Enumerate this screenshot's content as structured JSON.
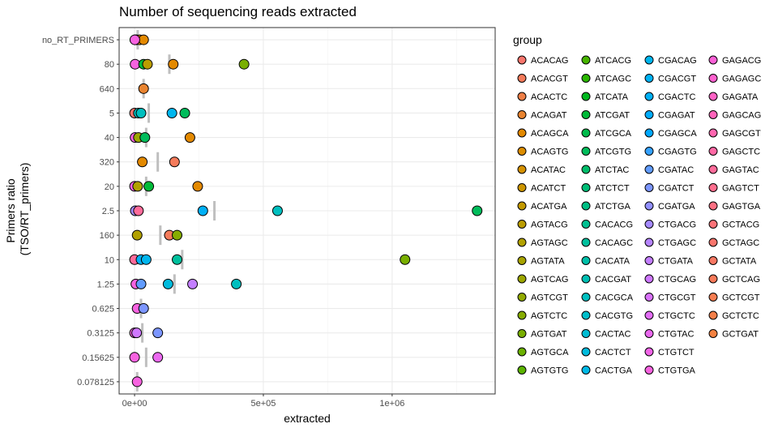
{
  "chart_data": {
    "type": "scatter",
    "title": "Number of sequencing reads extracted",
    "xlabel": "extracted",
    "ylabel_lines": [
      "Primers ratio",
      "(TSO/RT_primers)"
    ],
    "xlim": [
      -60000,
      1400000
    ],
    "x_ticks": [
      0,
      500000,
      1000000
    ],
    "x_tick_labels": [
      "0e+00",
      "5e+05",
      "1e+06"
    ],
    "categories": [
      "no_RT_PRIMERS",
      "80",
      "640",
      "5",
      "40",
      "320",
      "20",
      "2.5",
      "160",
      "10",
      "1.25",
      "0.625",
      "0.3125",
      "0.15625",
      "0.078125"
    ],
    "grid": true,
    "legend_position": "right",
    "legend_title": "group",
    "groups": [
      {
        "name": "ACACAG",
        "color": "#F8766D"
      },
      {
        "name": "ACACGT",
        "color": "#F47B5B"
      },
      {
        "name": "ACACTC",
        "color": "#EF7F47"
      },
      {
        "name": "ACAGAT",
        "color": "#E98430"
      },
      {
        "name": "ACAGCA",
        "color": "#E38900"
      },
      {
        "name": "ACAGTG",
        "color": "#DC8D00"
      },
      {
        "name": "ACATAC",
        "color": "#D59100"
      },
      {
        "name": "ACATCT",
        "color": "#CD9600"
      },
      {
        "name": "ACATGA",
        "color": "#C49A00"
      },
      {
        "name": "AGTACG",
        "color": "#BB9D00"
      },
      {
        "name": "AGTAGC",
        "color": "#B2A100"
      },
      {
        "name": "AGTATA",
        "color": "#A8A400"
      },
      {
        "name": "AGTCAG",
        "color": "#9DA700"
      },
      {
        "name": "AGTCGT",
        "color": "#92AA00"
      },
      {
        "name": "AGTCTC",
        "color": "#86AC00"
      },
      {
        "name": "AGTGAT",
        "color": "#79AF00"
      },
      {
        "name": "AGTGCA",
        "color": "#6BB100"
      },
      {
        "name": "AGTGTG",
        "color": "#5BB300"
      },
      {
        "name": "ATCACG",
        "color": "#47B500"
      },
      {
        "name": "ATCAGC",
        "color": "#2AB700"
      },
      {
        "name": "ATCATA",
        "color": "#00B81F"
      },
      {
        "name": "ATCGAT",
        "color": "#00BA38"
      },
      {
        "name": "ATCGCA",
        "color": "#00BB4B"
      },
      {
        "name": "ATCGTG",
        "color": "#00BC5B"
      },
      {
        "name": "ATCTAC",
        "color": "#00BD6A"
      },
      {
        "name": "ATCTCT",
        "color": "#00BE77"
      },
      {
        "name": "ATCTGA",
        "color": "#00BF84"
      },
      {
        "name": "CACACG",
        "color": "#00C091"
      },
      {
        "name": "CACAGC",
        "color": "#00C09D"
      },
      {
        "name": "CACATA",
        "color": "#00C0A9"
      },
      {
        "name": "CACGAT",
        "color": "#00C0B4"
      },
      {
        "name": "CACGCA",
        "color": "#00BFBF"
      },
      {
        "name": "CACGTG",
        "color": "#00BECA"
      },
      {
        "name": "CACTAC",
        "color": "#00BDD4"
      },
      {
        "name": "CACTCT",
        "color": "#00BBDD"
      },
      {
        "name": "CACTGA",
        "color": "#00B9E6"
      },
      {
        "name": "CGACAG",
        "color": "#00B6EE"
      },
      {
        "name": "CGACGT",
        "color": "#00B3F5"
      },
      {
        "name": "CGACTC",
        "color": "#00B0F6"
      },
      {
        "name": "CGAGAT",
        "color": "#00ACFC"
      },
      {
        "name": "CGAGCA",
        "color": "#00A8FF"
      },
      {
        "name": "CGAGTG",
        "color": "#35A2FF"
      },
      {
        "name": "CGATAC",
        "color": "#619CFF"
      },
      {
        "name": "CGATCT",
        "color": "#7C96FF"
      },
      {
        "name": "CGATGA",
        "color": "#9290FF"
      },
      {
        "name": "CTGACG",
        "color": "#A58AFF"
      },
      {
        "name": "CTGAGC",
        "color": "#B584FF"
      },
      {
        "name": "CTGATA",
        "color": "#C37EFF"
      },
      {
        "name": "CTGCAG",
        "color": "#CF78FF"
      },
      {
        "name": "CTGCGT",
        "color": "#DA72FB"
      },
      {
        "name": "CTGCTC",
        "color": "#E36EF6"
      },
      {
        "name": "CTGTAC",
        "color": "#EB69F0"
      },
      {
        "name": "CTGTCT",
        "color": "#F265E8"
      },
      {
        "name": "CTGTGA",
        "color": "#F763E0"
      },
      {
        "name": "GAGACG",
        "color": "#FB61D7"
      },
      {
        "name": "GAGAGC",
        "color": "#FE61CF"
      },
      {
        "name": "GAGATA",
        "color": "#FF62C5"
      },
      {
        "name": "GAGCAG",
        "color": "#FF64BB"
      },
      {
        "name": "GAGCGT",
        "color": "#FF66B0"
      },
      {
        "name": "GAGCTC",
        "color": "#FF69A5"
      },
      {
        "name": "GAGTAC",
        "color": "#FF6B9A"
      },
      {
        "name": "GAGTCT",
        "color": "#FF6E8E"
      },
      {
        "name": "GAGTGA",
        "color": "#FD7083"
      },
      {
        "name": "GCTACG",
        "color": "#FB7378"
      },
      {
        "name": "GCTAGC",
        "color": "#F9756C"
      },
      {
        "name": "GCTATA",
        "color": "#F87863"
      },
      {
        "name": "GCTCAG",
        "color": "#F77A5A"
      },
      {
        "name": "GCTCGT",
        "color": "#F67D51"
      },
      {
        "name": "GCTCTC",
        "color": "#F57F49"
      },
      {
        "name": "GCTGAT",
        "color": "#F48241"
      }
    ],
    "points": [
      {
        "y": "no_RT_PRIMERS",
        "x": 2000,
        "color": "#F8766D"
      },
      {
        "y": "no_RT_PRIMERS",
        "x": 8000,
        "color": "#00BFBF"
      },
      {
        "y": "no_RT_PRIMERS",
        "x": 20000,
        "color": "#E38900"
      },
      {
        "y": "no_RT_PRIMERS",
        "x": 35000,
        "color": "#E38900"
      },
      {
        "y": "no_RT_PRIMERS",
        "x": 1000,
        "color": "#F763E0"
      },
      {
        "y": "80",
        "x": 2000,
        "color": "#F763E0"
      },
      {
        "y": "80",
        "x": 35000,
        "color": "#00BA38"
      },
      {
        "y": "80",
        "x": 50000,
        "color": "#BB9D00"
      },
      {
        "y": "80",
        "x": 150000,
        "color": "#E38900"
      },
      {
        "y": "80",
        "x": 425000,
        "color": "#79AF00"
      },
      {
        "y": "640",
        "x": 35000,
        "color": "#E98430"
      },
      {
        "y": "5",
        "x": 0,
        "color": "#F8766D"
      },
      {
        "y": "5",
        "x": 15000,
        "color": "#00BFBF"
      },
      {
        "y": "5",
        "x": 25000,
        "color": "#00BFBF"
      },
      {
        "y": "5",
        "x": 145000,
        "color": "#00B6EE"
      },
      {
        "y": "5",
        "x": 195000,
        "color": "#00BC5B"
      },
      {
        "y": "40",
        "x": 2000,
        "color": "#F763E0"
      },
      {
        "y": "40",
        "x": 15000,
        "color": "#9DA700"
      },
      {
        "y": "40",
        "x": 40000,
        "color": "#00BC5B"
      },
      {
        "y": "40",
        "x": 215000,
        "color": "#E38900"
      },
      {
        "y": "320",
        "x": 30000,
        "color": "#E38900"
      },
      {
        "y": "320",
        "x": 155000,
        "color": "#F47B5B"
      },
      {
        "y": "20",
        "x": 0,
        "color": "#F763E0"
      },
      {
        "y": "20",
        "x": 12000,
        "color": "#B2A100"
      },
      {
        "y": "20",
        "x": 55000,
        "color": "#00BA38"
      },
      {
        "y": "20",
        "x": 245000,
        "color": "#E38900"
      },
      {
        "y": "2.5",
        "x": 3000,
        "color": "#A58AFF"
      },
      {
        "y": "2.5",
        "x": 15000,
        "color": "#FF6B9A"
      },
      {
        "y": "2.5",
        "x": 265000,
        "color": "#00B0F6"
      },
      {
        "y": "2.5",
        "x": 555000,
        "color": "#00BFBF"
      },
      {
        "y": "2.5",
        "x": 1330000,
        "color": "#00BC5B"
      },
      {
        "y": "160",
        "x": 10000,
        "color": "#B2A100"
      },
      {
        "y": "160",
        "x": 135000,
        "color": "#F47B5B"
      },
      {
        "y": "160",
        "x": 165000,
        "color": "#86AC00"
      },
      {
        "y": "10",
        "x": 0,
        "color": "#FF6B9A"
      },
      {
        "y": "10",
        "x": 25000,
        "color": "#00B0F6"
      },
      {
        "y": "10",
        "x": 45000,
        "color": "#00B6EE"
      },
      {
        "y": "10",
        "x": 165000,
        "color": "#00C09D"
      },
      {
        "y": "10",
        "x": 1050000,
        "color": "#79AF00"
      },
      {
        "y": "1.25",
        "x": 5000,
        "color": "#F763E0"
      },
      {
        "y": "1.25",
        "x": 25000,
        "color": "#619CFF"
      },
      {
        "y": "1.25",
        "x": 130000,
        "color": "#00BBDD"
      },
      {
        "y": "1.25",
        "x": 225000,
        "color": "#C37EFF"
      },
      {
        "y": "1.25",
        "x": 395000,
        "color": "#00BFBF"
      },
      {
        "y": "0.625",
        "x": 10000,
        "color": "#F763E0"
      },
      {
        "y": "0.625",
        "x": 35000,
        "color": "#7C96FF"
      },
      {
        "y": "0.3125",
        "x": 0,
        "color": "#F763E0"
      },
      {
        "y": "0.3125",
        "x": 8000,
        "color": "#CF78FF"
      },
      {
        "y": "0.3125",
        "x": 90000,
        "color": "#7C96FF"
      },
      {
        "y": "0.15625",
        "x": 0,
        "color": "#F763E0"
      },
      {
        "y": "0.15625",
        "x": 90000,
        "color": "#EB69F0"
      },
      {
        "y": "0.078125",
        "x": 10000,
        "color": "#F763E0"
      }
    ],
    "means": [
      {
        "y": "no_RT_PRIMERS",
        "x": 12000
      },
      {
        "y": "80",
        "x": 135000
      },
      {
        "y": "640",
        "x": 35000
      },
      {
        "y": "5",
        "x": 55000
      },
      {
        "y": "40",
        "x": 45000
      },
      {
        "y": "320",
        "x": 90000
      },
      {
        "y": "20",
        "x": 45000
      },
      {
        "y": "2.5",
        "x": 310000
      },
      {
        "y": "160",
        "x": 100000
      },
      {
        "y": "10",
        "x": 185000
      },
      {
        "y": "1.25",
        "x": 155000
      },
      {
        "y": "0.625",
        "x": 25000
      },
      {
        "y": "0.3125",
        "x": 30000
      },
      {
        "y": "0.15625",
        "x": 45000
      },
      {
        "y": "0.078125",
        "x": 10000
      }
    ]
  }
}
